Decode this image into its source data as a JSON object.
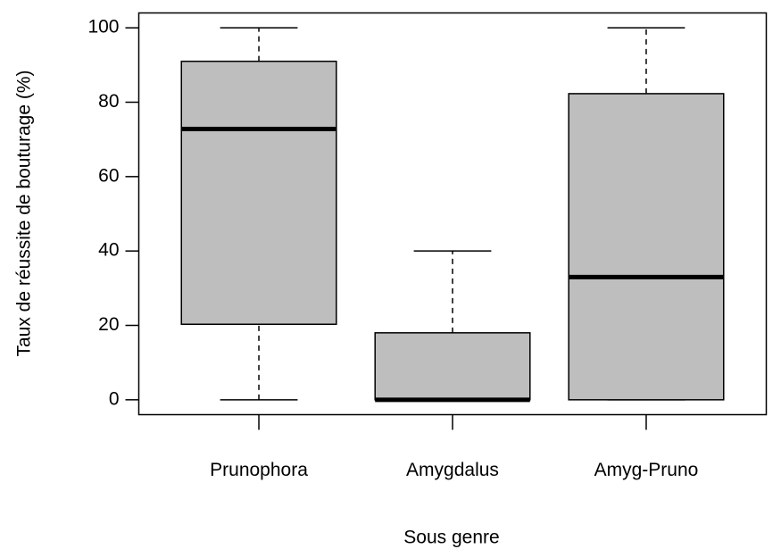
{
  "chart_data": {
    "type": "box",
    "x_label": "Sous genre",
    "y_label": "Taux de réussite de bouturage (%)",
    "categories": [
      "Prunophora",
      "Amygdalus",
      "Amyg-Pruno"
    ],
    "boxes": [
      {
        "min": 0,
        "q1": 20.3,
        "median": 72.8,
        "q3": 91,
        "max": 100
      },
      {
        "min": 0,
        "q1": 0,
        "median": 0,
        "q3": 18,
        "max": 40
      },
      {
        "min": 0,
        "q1": 0,
        "median": 33,
        "q3": 82.3,
        "max": 100
      }
    ],
    "color": "#bebebe",
    "ylim": [
      -4,
      104
    ],
    "yticks": [
      0,
      20,
      40,
      60,
      80,
      100
    ]
  }
}
